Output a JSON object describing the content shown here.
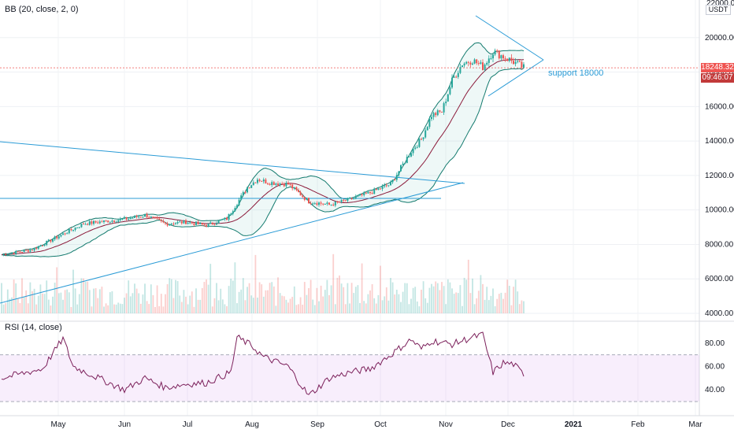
{
  "chart_data": [
    {
      "type": "candlestick",
      "indicator_label": "BB (20, close, 2, 0)",
      "y_unit": "USDT",
      "ylim": [
        4000,
        22000
      ],
      "y_ticks": [
        4000,
        6000,
        8000,
        10000,
        12000,
        14000,
        16000,
        18000,
        20000
      ],
      "y_tick_labels": [
        "4000.00",
        "6000.00",
        "8000.00",
        "10000.00",
        "12000.00",
        "14000.00",
        "16000.00",
        "18000.00",
        "20000.00"
      ],
      "y_top_label": "22000.00",
      "x_months": [
        "May",
        "Jun",
        "Jul",
        "Aug",
        "Sep",
        "Oct",
        "Nov",
        "Dec",
        "2021",
        "Feb",
        "Mar"
      ],
      "last_price": 18248.32,
      "last_price_label": "18248.32",
      "countdown": "09:46:07",
      "annotation": "support 18000",
      "price_path": [
        [
          0,
          7400
        ],
        [
          15,
          7700
        ],
        [
          30,
          8600
        ],
        [
          40,
          9200
        ],
        [
          55,
          9400
        ],
        [
          62,
          9500
        ],
        [
          70,
          9700
        ],
        [
          80,
          9200
        ],
        [
          90,
          9300
        ],
        [
          100,
          9100
        ],
        [
          110,
          9500
        ],
        [
          120,
          11300
        ],
        [
          125,
          11800
        ],
        [
          130,
          11600
        ],
        [
          140,
          11500
        ],
        [
          150,
          10500
        ],
        [
          160,
          10300
        ],
        [
          170,
          10600
        ],
        [
          180,
          11000
        ],
        [
          190,
          11500
        ],
        [
          200,
          13400
        ],
        [
          205,
          14100
        ],
        [
          210,
          15500
        ],
        [
          215,
          15700
        ],
        [
          220,
          17500
        ],
        [
          225,
          18500
        ],
        [
          230,
          18700
        ],
        [
          235,
          18300
        ],
        [
          240,
          19200
        ],
        [
          245,
          18900
        ],
        [
          250,
          18600
        ],
        [
          255,
          18248
        ]
      ]
    },
    {
      "type": "line",
      "indicator_label": "RSI (14, close)",
      "ylim": [
        26,
        92
      ],
      "y_ticks": [
        40,
        60,
        80
      ],
      "y_tick_labels": [
        "40.00",
        "60.00",
        "80.00"
      ],
      "band": [
        30,
        70
      ],
      "rsi_path": [
        [
          0,
          50
        ],
        [
          20,
          58
        ],
        [
          30,
          84
        ],
        [
          35,
          60
        ],
        [
          50,
          48
        ],
        [
          60,
          40
        ],
        [
          70,
          50
        ],
        [
          80,
          42
        ],
        [
          90,
          45
        ],
        [
          100,
          46
        ],
        [
          112,
          55
        ],
        [
          115,
          85
        ],
        [
          122,
          78
        ],
        [
          128,
          68
        ],
        [
          140,
          60
        ],
        [
          150,
          35
        ],
        [
          160,
          50
        ],
        [
          170,
          55
        ],
        [
          180,
          58
        ],
        [
          190,
          70
        ],
        [
          200,
          83
        ],
        [
          205,
          75
        ],
        [
          210,
          82
        ],
        [
          220,
          79
        ],
        [
          230,
          85
        ],
        [
          235,
          87
        ],
        [
          240,
          55
        ],
        [
          245,
          63
        ],
        [
          250,
          62
        ],
        [
          255,
          53
        ]
      ]
    }
  ]
}
